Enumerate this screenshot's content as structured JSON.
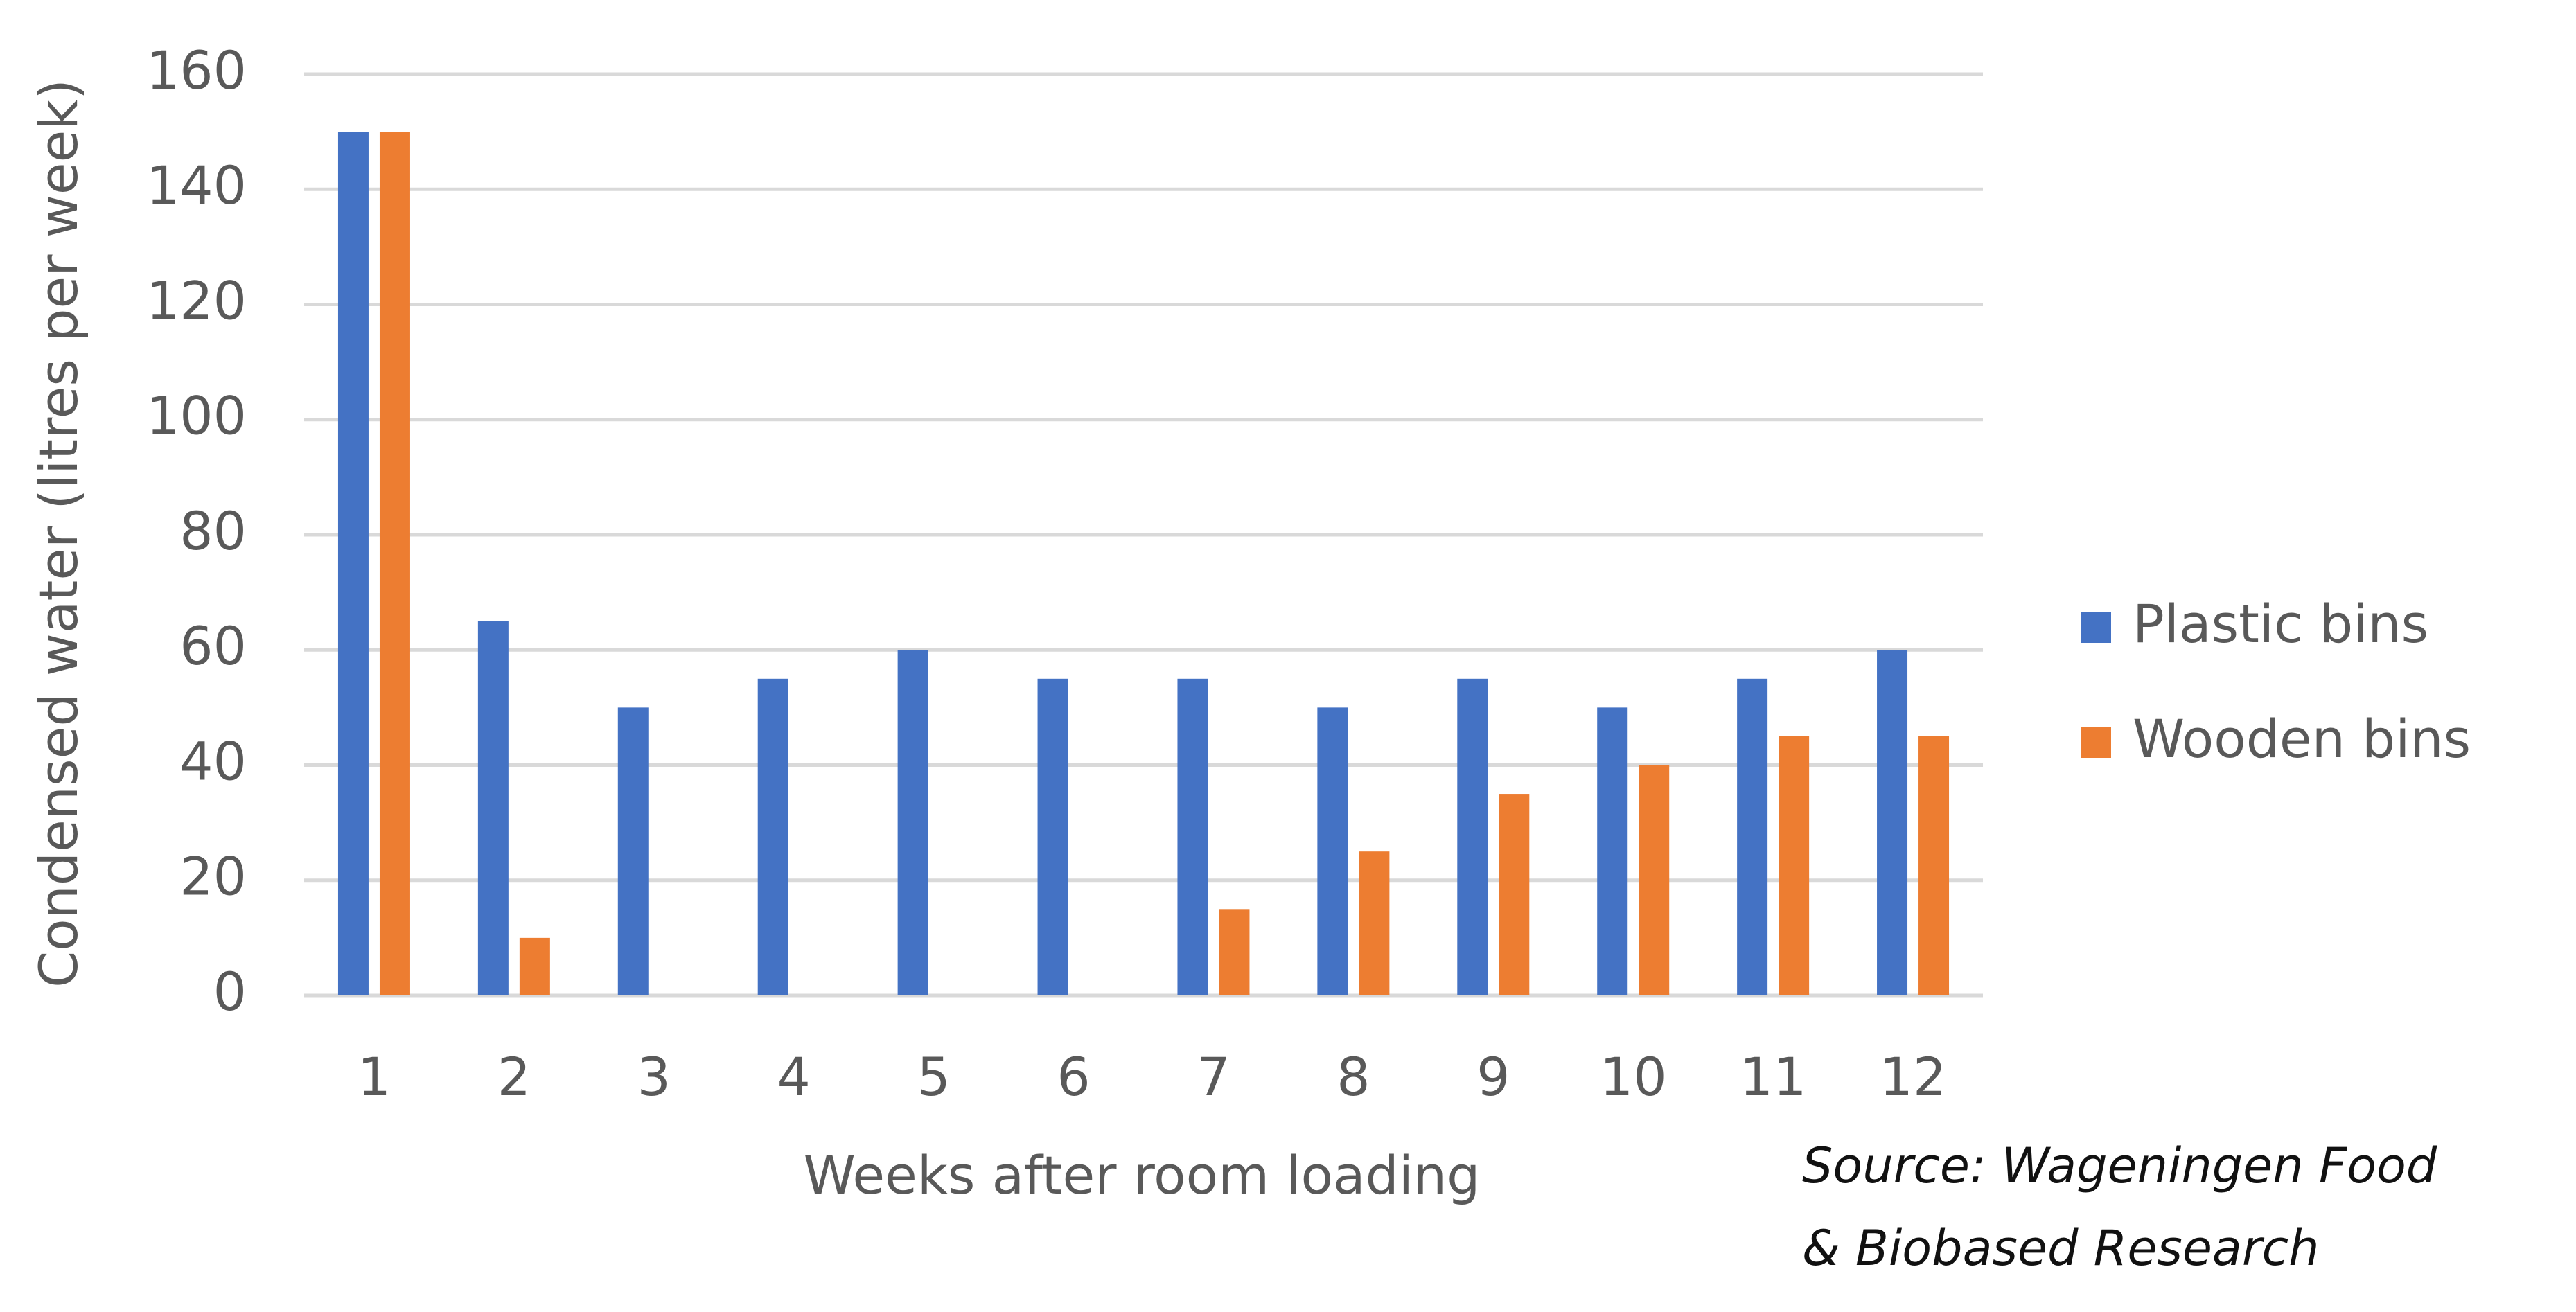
{
  "chart_data": {
    "type": "bar",
    "categories": [
      "1",
      "2",
      "3",
      "4",
      "5",
      "6",
      "7",
      "8",
      "9",
      "10",
      "11",
      "12"
    ],
    "series": [
      {
        "name": "Plastic bins",
        "color": "#4472c4",
        "values": [
          150,
          65,
          50,
          55,
          60,
          55,
          55,
          50,
          55,
          50,
          55,
          60
        ]
      },
      {
        "name": "Wooden bins",
        "color": "#ed7d31",
        "values": [
          150,
          10,
          0,
          0,
          0,
          0,
          15,
          25,
          35,
          40,
          45,
          45
        ]
      }
    ],
    "x_label": "Weeks after room loading",
    "y_label": "Condensed water (litres per week)",
    "ylim": [
      0,
      160
    ],
    "yticks": [
      0,
      20,
      40,
      60,
      80,
      100,
      120,
      140,
      160
    ],
    "grid": true,
    "legend": "right",
    "source": [
      "Source: Wageningen Food",
      "& Biobased Research"
    ]
  }
}
